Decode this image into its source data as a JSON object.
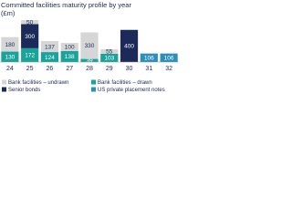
{
  "chart_data": {
    "type": "stacked-bar",
    "title": "Committed facilities maturity profile by year",
    "subtitle": "(£m)",
    "categories": [
      "24",
      "25",
      "26",
      "27",
      "28",
      "29",
      "30",
      "31",
      "32"
    ],
    "series": [
      {
        "name": "Bank facilities – undrawn",
        "color": "#d6d6d6",
        "values": [
          180,
          50,
          137,
          100,
          330,
          55,
          null,
          null,
          null
        ]
      },
      {
        "name": "Bank facilities – drawn",
        "color": "#1aa39b",
        "values": [
          130,
          172,
          124,
          138,
          39,
          103,
          null,
          null,
          null
        ]
      },
      {
        "name": "Senior bonds",
        "color": "#1b2a59",
        "values": [
          null,
          300,
          null,
          null,
          null,
          null,
          400,
          null,
          null
        ]
      },
      {
        "name": "US private placement notes",
        "color": "#2b8fb8",
        "values": [
          null,
          null,
          null,
          null,
          null,
          null,
          null,
          106,
          106
        ]
      }
    ],
    "legend": "bottom"
  }
}
